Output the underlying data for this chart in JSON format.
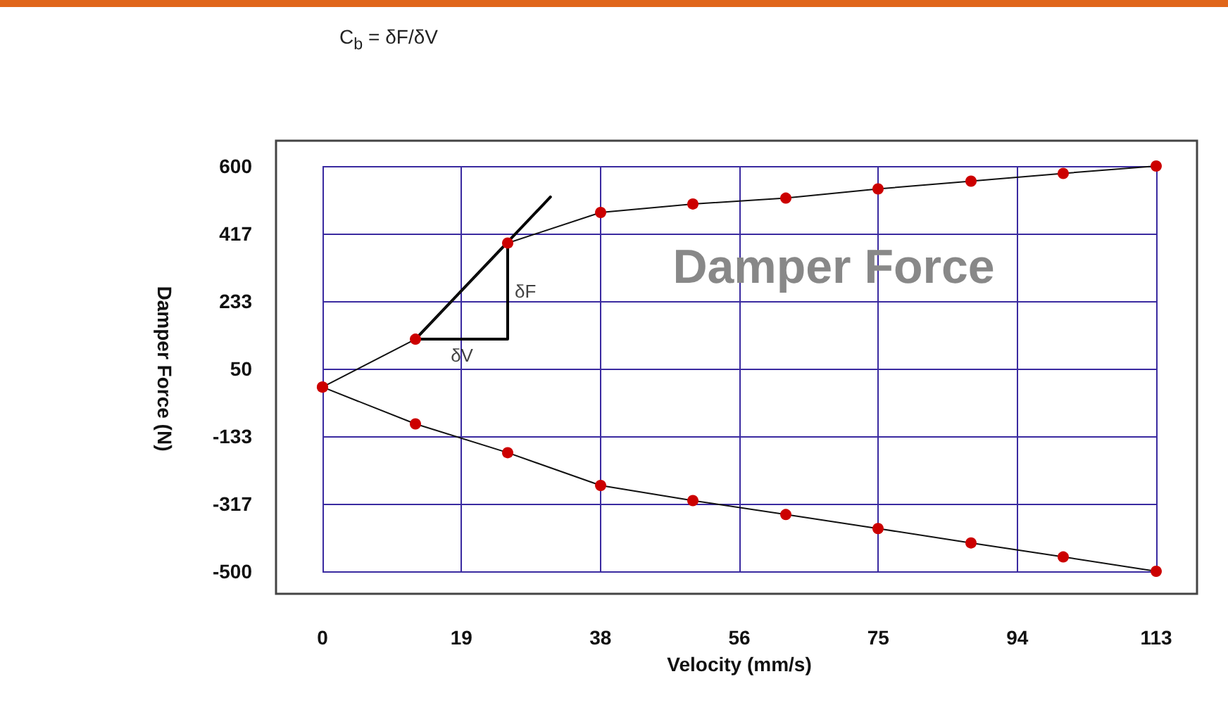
{
  "chart_data": {
    "type": "line",
    "title": "C$_{b}$ = δF/δV",
    "xlabel": "Velocity (mm/s)",
    "ylabel": "Damper Force (N)",
    "xlim": [
      0,
      113
    ],
    "xticks": [
      {
        "value": 0,
        "label": "0"
      },
      {
        "value": 18.83,
        "label": "19"
      },
      {
        "value": 37.67,
        "label": "38"
      },
      {
        "value": 56.5,
        "label": "56"
      },
      {
        "value": 75.33,
        "label": "75"
      },
      {
        "value": 94.17,
        "label": "94"
      },
      {
        "value": 113,
        "label": "113"
      }
    ],
    "ylim": [
      -500,
      600
    ],
    "yticks": [
      -500,
      {
        "value": -316.7,
        "label": "-317"
      },
      {
        "value": -133.3,
        "label": "-133"
      },
      50,
      {
        "value": 233.3,
        "label": "233"
      },
      {
        "value": 416.7,
        "label": "417"
      },
      600
    ],
    "grid": true,
    "marker": "circle",
    "line_style": "solid",
    "series": [
      {
        "color": "#cc0000",
        "x": [
          0,
          12.6,
          25.1,
          37.7,
          50.2,
          62.8,
          75.3,
          87.9,
          100.4,
          113
        ],
        "values": [
          0,
          130,
          391,
          474,
          497,
          513,
          538,
          559,
          580,
          600
        ]
      },
      {
        "color": "#cc0000",
        "x": [
          0,
          12.6,
          25.1,
          37.7,
          50.2,
          62.8,
          75.3,
          87.9,
          100.4,
          113
        ],
        "values": [
          0,
          -100,
          -178,
          -267,
          -308,
          -346,
          -384,
          -423,
          -461,
          -500
        ]
      },
      {
        "color": "#000000",
        "marker": "none",
        "x": [
          12.6,
          30.9
        ],
        "values": [
          130,
          516
        ]
      },
      {
        "color": "#000000",
        "marker": "none",
        "x": [
          12.6,
          25.1,
          25.1
        ],
        "values": [
          130,
          130,
          391
        ]
      }
    ],
    "annotations": [
      {
        "text": "δF",
        "x": 25.1,
        "y": 260
      },
      {
        "text": "δV",
        "x": 18.9,
        "y": 130
      },
      "Damper Force"
    ]
  }
}
